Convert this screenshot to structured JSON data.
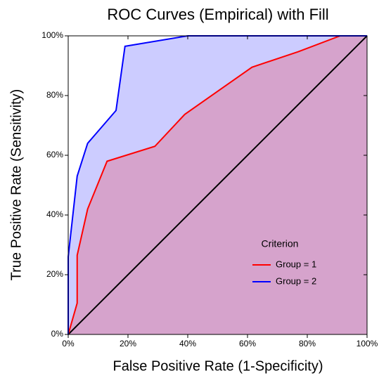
{
  "chart_data": {
    "type": "roc",
    "title": "ROC Curves (Empirical) with Fill",
    "x_label": "False Positive Rate (1-Specificity)",
    "y_label": "True Positive Rate (Sensitivity)",
    "legend_title": "Criterion",
    "xlim": [
      0,
      100
    ],
    "ylim": [
      0,
      100
    ],
    "xticks": [
      {
        "value": 0,
        "label": "0%"
      },
      {
        "value": 20,
        "label": "20%"
      },
      {
        "value": 40,
        "label": "40%"
      },
      {
        "value": 60,
        "label": "60%"
      },
      {
        "value": 80,
        "label": "80%"
      },
      {
        "value": 100,
        "label": "100%"
      }
    ],
    "yticks": [
      {
        "value": 0,
        "label": "0%"
      },
      {
        "value": 20,
        "label": "20%"
      },
      {
        "value": 40,
        "label": "40%"
      },
      {
        "value": 60,
        "label": "60%"
      },
      {
        "value": 80,
        "label": "80%"
      },
      {
        "value": 100,
        "label": "100%"
      }
    ],
    "series": [
      {
        "name": "Group = 2",
        "color": "#0000ff",
        "x": [
          0,
          0,
          3,
          6.5,
          16,
          19,
          40,
          100
        ],
        "values": [
          0,
          26,
          53,
          64,
          75,
          96.5,
          100,
          100
        ]
      },
      {
        "name": "Group = 1",
        "color": "#ff0000",
        "x": [
          0,
          3,
          3,
          6.5,
          13,
          29,
          39,
          61.5,
          77,
          91,
          100
        ],
        "values": [
          0,
          10.5,
          26.5,
          42,
          58,
          63,
          73.7,
          89.5,
          94.7,
          100,
          100
        ]
      }
    ]
  }
}
